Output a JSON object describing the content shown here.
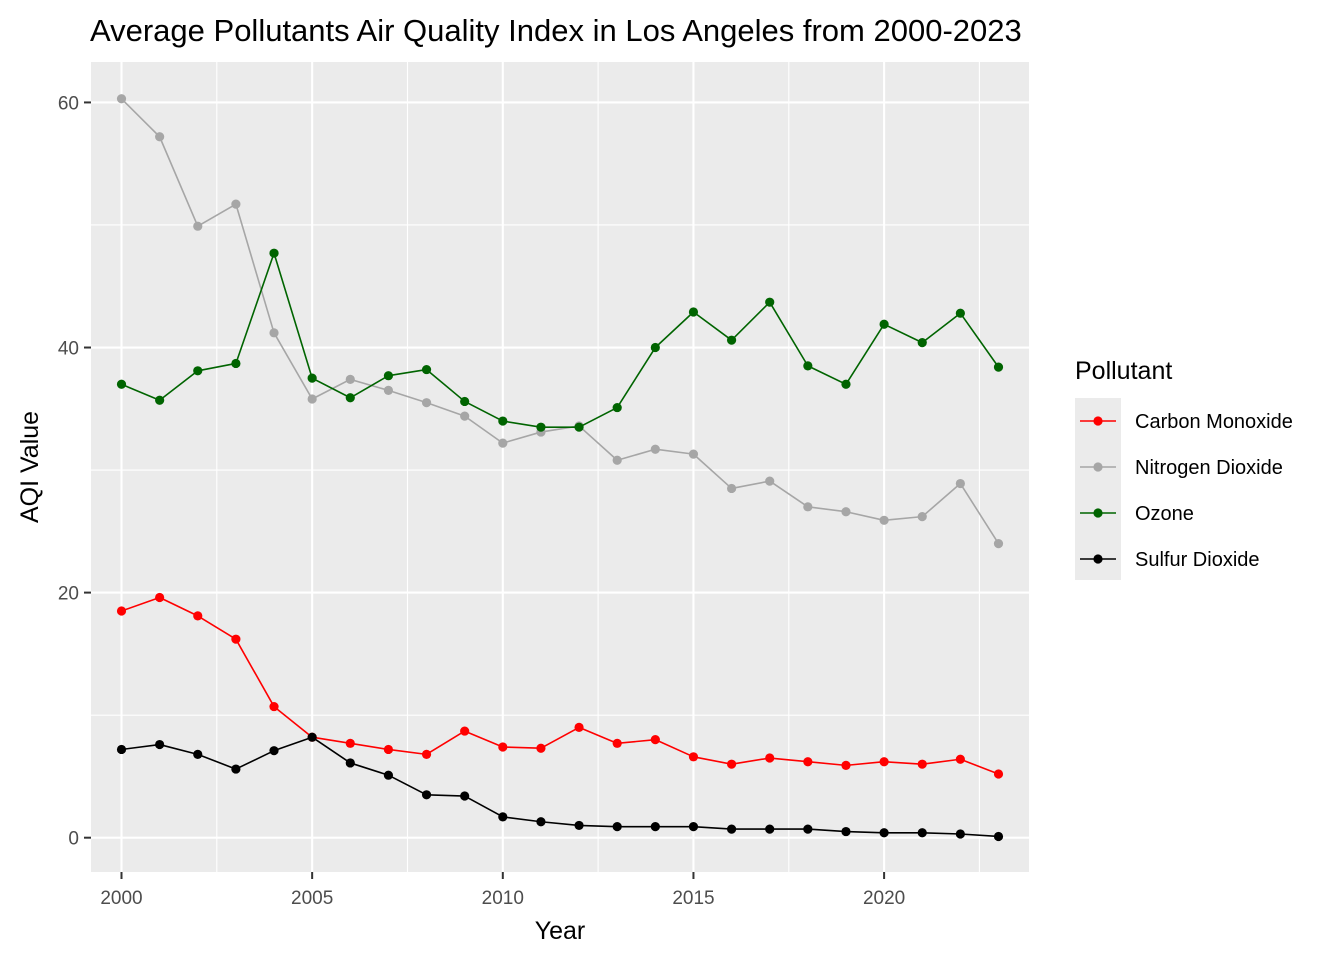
{
  "chart_data": {
    "type": "line",
    "title": "Average Pollutants Air Quality Index in Los Angeles from 2000-2023",
    "xlabel": "Year",
    "ylabel": "AQI Value",
    "xlim": [
      1999.2,
      2023.8
    ],
    "ylim": [
      -2.8,
      63.3
    ],
    "x_ticks": [
      2000,
      2005,
      2010,
      2015,
      2020
    ],
    "y_ticks": [
      0,
      20,
      40,
      60
    ],
    "grid": true,
    "legend": {
      "title": "Pollutant",
      "position": "right"
    },
    "x": [
      2000,
      2001,
      2002,
      2003,
      2004,
      2005,
      2006,
      2007,
      2008,
      2009,
      2010,
      2011,
      2012,
      2013,
      2014,
      2015,
      2016,
      2017,
      2018,
      2019,
      2020,
      2021,
      2022,
      2023
    ],
    "series": [
      {
        "name": "Carbon Monoxide",
        "color": "#ff0000",
        "values": [
          18.5,
          19.6,
          18.1,
          16.2,
          10.7,
          8.2,
          7.7,
          7.2,
          6.8,
          8.7,
          7.4,
          7.3,
          9.0,
          7.7,
          8.0,
          6.6,
          6.0,
          6.5,
          6.2,
          5.9,
          6.2,
          6.0,
          6.4,
          5.2
        ]
      },
      {
        "name": "Nitrogen Dioxide",
        "color": "#a6a6a6",
        "values": [
          60.3,
          57.2,
          49.9,
          51.7,
          41.2,
          35.8,
          37.4,
          36.5,
          35.5,
          34.4,
          32.2,
          33.1,
          33.6,
          30.8,
          31.7,
          31.3,
          28.5,
          29.1,
          27.0,
          26.6,
          25.9,
          26.2,
          28.9,
          24.0
        ]
      },
      {
        "name": "Ozone",
        "color": "#006400",
        "values": [
          37.0,
          35.7,
          38.1,
          38.7,
          47.7,
          37.5,
          35.9,
          37.7,
          38.2,
          35.6,
          34.0,
          33.5,
          33.5,
          35.1,
          40.0,
          42.9,
          40.6,
          43.7,
          38.5,
          37.0,
          41.9,
          40.4,
          42.8,
          38.4
        ]
      },
      {
        "name": "Sulfur Dioxide",
        "color": "#000000",
        "values": [
          7.2,
          7.6,
          6.8,
          5.6,
          7.1,
          8.2,
          6.1,
          5.1,
          3.5,
          3.4,
          1.7,
          1.3,
          1.0,
          0.9,
          0.9,
          0.9,
          0.7,
          0.7,
          0.7,
          0.5,
          0.4,
          0.4,
          0.3,
          0.1
        ]
      }
    ]
  }
}
